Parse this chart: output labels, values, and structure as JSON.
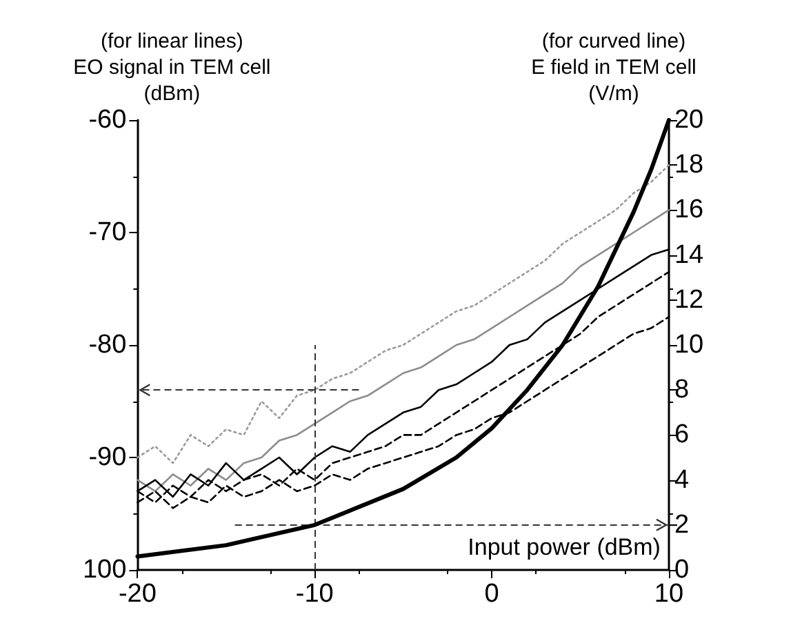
{
  "chart_data": {
    "type": "line",
    "ylabel": "(for linear lines)\nEO signal in TEM cell\n(dBm)",
    "y2label": "(for curved line)\nE field in TEM cell\n(V/m)",
    "xlabel": "Input power (dBm)",
    "x": [
      -20,
      -19,
      -18,
      -17,
      -16,
      -15,
      -14,
      -13,
      -12,
      -11,
      -10,
      -9,
      -8,
      -7,
      -6,
      -5,
      -4,
      -3,
      -2,
      -1,
      0,
      1,
      2,
      3,
      4,
      5,
      6,
      7,
      8,
      9,
      10
    ],
    "series": [
      {
        "color": "#999999",
        "line_style": "dotted",
        "values": [
          -90,
          -89,
          -90.5,
          -88,
          -89,
          -87.5,
          -88,
          -85,
          -86.5,
          -84.5,
          -84,
          -83,
          -82.5,
          -81.5,
          -80.5,
          -80,
          -79,
          -78,
          -77,
          -76.5,
          -75.5,
          -74.5,
          -73.5,
          -72.5,
          -71,
          -70,
          -69,
          -68,
          -66.5,
          -65.5,
          -64
        ]
      },
      {
        "color": "#8c8c8c",
        "line_style": "solid",
        "values": [
          -92,
          -93,
          -91.5,
          -92.5,
          -91,
          -92,
          -90.5,
          -90,
          -88.5,
          -88,
          -87,
          -86,
          -85,
          -84.5,
          -83.5,
          -82.5,
          -82,
          -81,
          -80,
          -79.5,
          -78.5,
          -77.5,
          -76.5,
          -75.5,
          -74.5,
          -73,
          -72,
          -71,
          -70,
          -69,
          -68
        ]
      },
      {
        "color": "#000000",
        "line_style": "solid",
        "values": [
          -93,
          -92,
          -93.5,
          -91.5,
          -92.5,
          -90.5,
          -92,
          -91,
          -90,
          -91.5,
          -90,
          -89,
          -89.5,
          -88,
          -87,
          -86,
          -85.5,
          -84,
          -83.5,
          -82.5,
          -81.5,
          -80,
          -79.5,
          -78,
          -77,
          -76,
          -75,
          -74,
          -73,
          -72,
          -71.5
        ]
      },
      {
        "color": "#000000",
        "line_style": "dashed",
        "values": [
          -93,
          -94,
          -92.5,
          -93.5,
          -92,
          -93,
          -92,
          -91.5,
          -92.5,
          -91,
          -92,
          -90.5,
          -90,
          -89.5,
          -89,
          -88,
          -88,
          -87,
          -86,
          -85,
          -84,
          -83,
          -82,
          -81,
          -80,
          -79,
          -77.5,
          -76.5,
          -75.5,
          -74.5,
          -73.5
        ]
      },
      {
        "color": "#000000",
        "line_style": "dashed",
        "values": [
          -94,
          -93,
          -94.5,
          -93.5,
          -94,
          -92.5,
          -93.5,
          -93,
          -92,
          -93,
          -92.5,
          -91.5,
          -92,
          -91,
          -90.5,
          -90,
          -89.5,
          -89,
          -88,
          -87.5,
          -86.5,
          -86,
          -85,
          -84,
          -83,
          -82,
          -81,
          -80,
          -79,
          -78.5,
          -77.5
        ]
      },
      {
        "color": "#000000",
        "line_style": "solid",
        "axis": "y2",
        "x": [
          -20,
          -15,
          -10,
          -5,
          -2,
          0,
          2,
          4,
          6,
          8,
          9,
          10
        ],
        "values": [
          0.6,
          1.1,
          2,
          3.6,
          5,
          6.3,
          8,
          10,
          12.6,
          15.9,
          17.8,
          20
        ]
      }
    ],
    "xlim": [
      -20,
      10
    ],
    "xticks": [
      -20,
      -10,
      0,
      10
    ],
    "ylim": [
      -100,
      -60
    ],
    "yticks": [
      {
        "value": -100,
        "label": "100"
      },
      -90,
      -80,
      -70,
      -60
    ],
    "y2lim": [
      0,
      20
    ],
    "y2ticks": [
      0,
      2,
      4,
      6,
      8,
      10,
      12,
      14,
      16,
      18,
      20
    ],
    "ref_lines": [
      {
        "axis": "x",
        "value": -10,
        "line_style": "dashed",
        "color": "#333333"
      },
      {
        "axis": "y",
        "value": -84,
        "line_style": "dashed",
        "color": "#333333"
      },
      {
        "axis": "y2",
        "value": 2,
        "line_style": "dashed",
        "color": "#333333"
      }
    ],
    "grid": false,
    "marker": "none"
  }
}
